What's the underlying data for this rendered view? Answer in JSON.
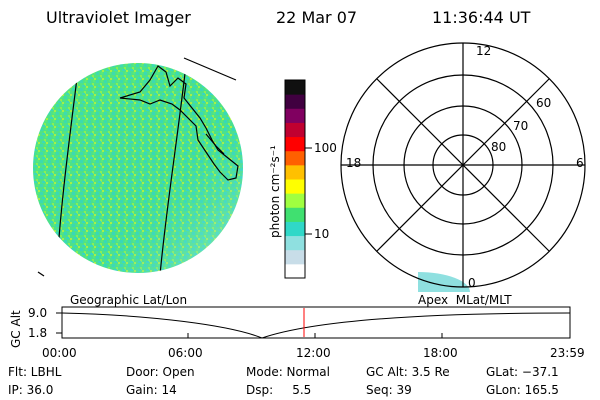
{
  "header": {
    "title": "Ultraviolet Imager",
    "date": "22 Mar 07",
    "time": "11:36:44 UT"
  },
  "colorbar": {
    "label": "photon cm⁻²s⁻¹",
    "ticks": [
      "100",
      "10"
    ],
    "colors": [
      "#ffffff",
      "#c8dde8",
      "#8fe0e0",
      "#30d8c8",
      "#40e070",
      "#a0ff40",
      "#ffff00",
      "#ffc000",
      "#ff6000",
      "#ff0000",
      "#c00030",
      "#800060",
      "#400040",
      "#101010"
    ]
  },
  "polar": {
    "mlt_labels": {
      "top": "12",
      "left": "18",
      "right": "6",
      "bottom": "0"
    },
    "lat_labels": [
      "60",
      "70",
      "80"
    ]
  },
  "timeline": {
    "left_label": "Geographic Lat/Lon",
    "right_label": "Apex  MLat/MLT",
    "axis_title": "GC Alt",
    "y_ticks": [
      "9.0",
      "1.8"
    ],
    "x_ticks": [
      "00:00",
      "06:00",
      "12:00",
      "18:00",
      "23:59"
    ]
  },
  "info": {
    "flt": "Flt: LBHL",
    "ip": "IP: 36.0",
    "door": "Door: Open",
    "gain": "Gain: 14",
    "mode": "Mode: Normal",
    "dsp": "Dsp:     5.5",
    "gcalt": "GC Alt: 3.5 Re",
    "seq": "Seq: 39",
    "glat": "GLat: −37.1",
    "glon": "GLon: 165.5"
  }
}
